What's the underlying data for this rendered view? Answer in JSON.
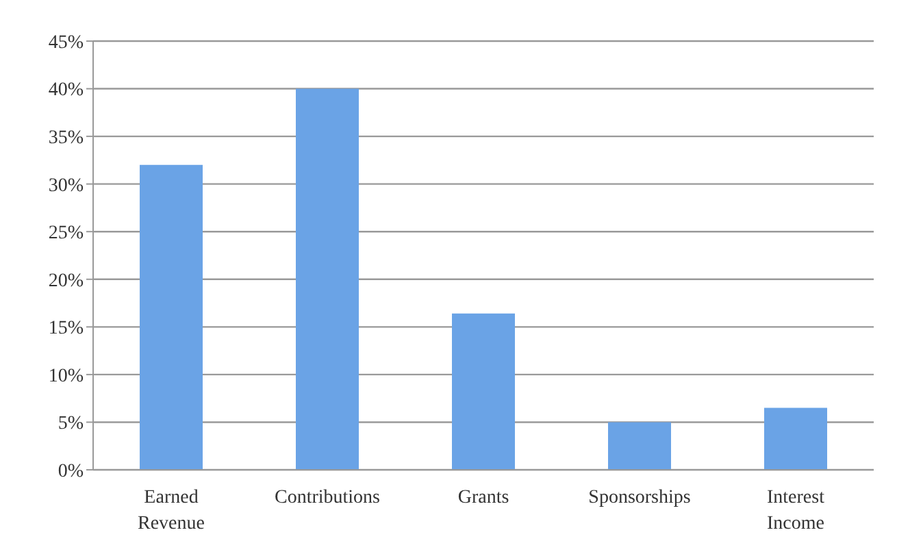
{
  "chart_data": {
    "type": "bar",
    "categories": [
      "Earned Revenue",
      "Contributions",
      "Grants",
      "Sponsorships",
      "Interest Income"
    ],
    "values": [
      32,
      40,
      16.4,
      5,
      6.5
    ],
    "color": "#6aa3e6",
    "ylim": [
      0,
      45
    ],
    "yticks": [
      {
        "value": 0,
        "label": "0%"
      },
      {
        "value": 5,
        "label": "5%"
      },
      {
        "value": 10,
        "label": "10%"
      },
      {
        "value": 15,
        "label": "15%"
      },
      {
        "value": 20,
        "label": "20%"
      },
      {
        "value": 25,
        "label": "25%"
      },
      {
        "value": 30,
        "label": "30%"
      },
      {
        "value": 35,
        "label": "35%"
      },
      {
        "value": 40,
        "label": "40%"
      },
      {
        "value": 45,
        "label": "45%"
      }
    ],
    "grid": "y"
  }
}
